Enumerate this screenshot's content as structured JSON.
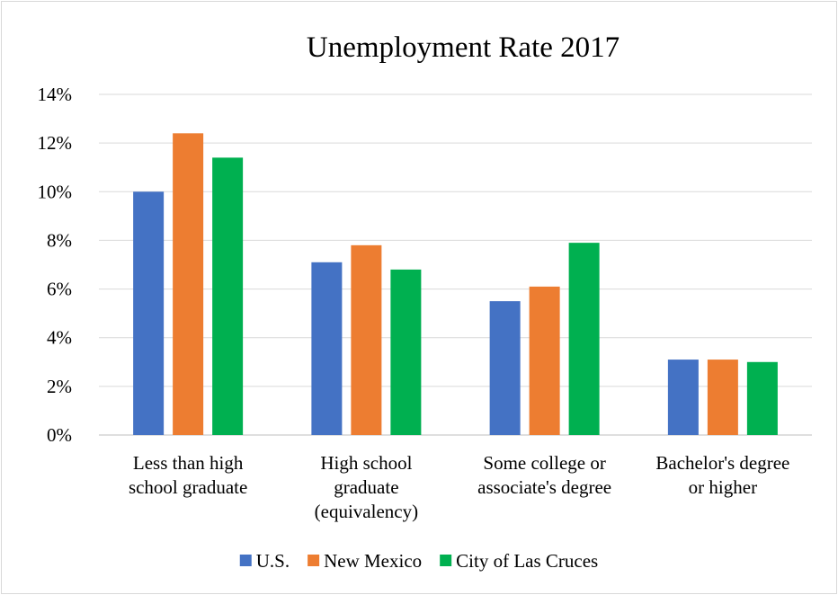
{
  "chart_data": {
    "type": "bar",
    "title": "Unemployment Rate 2017",
    "categories": [
      [
        "Less than high",
        "school graduate"
      ],
      [
        "High school",
        "graduate",
        "(equivalency)"
      ],
      [
        "Some college or",
        "associate's degree"
      ],
      [
        "Bachelor's degree",
        "or higher"
      ]
    ],
    "series": [
      {
        "name": "U.S.",
        "color": "#4472C4",
        "values": [
          10.0,
          7.1,
          5.5,
          3.1
        ]
      },
      {
        "name": "New Mexico",
        "color": "#ED7D31",
        "values": [
          12.4,
          7.8,
          6.1,
          3.1
        ]
      },
      {
        "name": "City of Las Cruces",
        "color": "#00B050",
        "values": [
          11.4,
          6.8,
          7.9,
          3.0
        ]
      }
    ],
    "y_ticks": [
      "0%",
      "2%",
      "4%",
      "6%",
      "8%",
      "10%",
      "12%",
      "14%"
    ],
    "ylim": [
      0,
      14
    ],
    "grid": true,
    "legend_position": "bottom"
  }
}
